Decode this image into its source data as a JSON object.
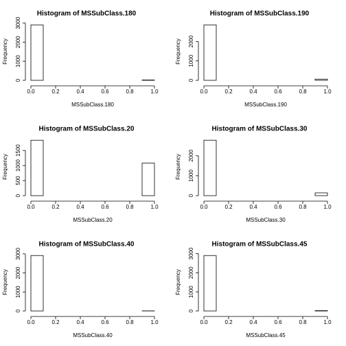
{
  "chart_data": [
    {
      "type": "histogram",
      "title": "Histogram of  MSSubClass.180",
      "x_label": "MSSubClass.180",
      "y_label": "Frequency",
      "bins": [
        0,
        0.1,
        0.2,
        0.3,
        0.4,
        0.5,
        0.6,
        0.7,
        0.8,
        0.9,
        1
      ],
      "values": [
        2902,
        0,
        0,
        0,
        0,
        0,
        0,
        0,
        0,
        17
      ],
      "xlim": [
        0,
        1
      ],
      "xticks": [
        {
          "value": 0,
          "label": "0.0"
        },
        0.2,
        0.4,
        0.6,
        0.8,
        {
          "value": 1,
          "label": "1.0"
        }
      ],
      "ylim": [
        0,
        3018
      ],
      "yticks": [
        0,
        1000,
        2000,
        3000
      ]
    },
    {
      "type": "histogram",
      "title": "Histogram of  MSSubClass.190",
      "x_label": "MSSubClass.190",
      "y_label": "Frequency",
      "bins": [
        0,
        0.1,
        0.2,
        0.3,
        0.4,
        0.5,
        0.6,
        0.7,
        0.8,
        0.9,
        1
      ],
      "values": [
        2858,
        0,
        0,
        0,
        0,
        0,
        0,
        0,
        0,
        61
      ],
      "xlim": [
        0,
        1
      ],
      "xticks": [
        {
          "value": 0,
          "label": "0.0"
        },
        0.2,
        0.4,
        0.6,
        0.8,
        {
          "value": 1,
          "label": "1.0"
        }
      ],
      "ylim": [
        0,
        2972
      ],
      "yticks": [
        0,
        1000,
        2000
      ]
    },
    {
      "type": "histogram",
      "title": "Histogram of  MSSubClass.20",
      "x_label": "MSSubClass.20",
      "y_label": "Frequency",
      "bins": [
        0,
        0.1,
        0.2,
        0.3,
        0.4,
        0.5,
        0.6,
        0.7,
        0.8,
        0.9,
        1
      ],
      "values": [
        1840,
        0,
        0,
        0,
        0,
        0,
        0,
        0,
        0,
        1079
      ],
      "xlim": [
        0,
        1
      ],
      "xticks": [
        {
          "value": 0,
          "label": "0.0"
        },
        0.2,
        0.4,
        0.6,
        0.8,
        {
          "value": 1,
          "label": "1.0"
        }
      ],
      "ylim": [
        0,
        1914
      ],
      "yticks": [
        0,
        500,
        1000,
        1500
      ]
    },
    {
      "type": "histogram",
      "title": "Histogram of  MSSubClass.30",
      "x_label": "MSSubClass.30",
      "y_label": "Frequency",
      "bins": [
        0,
        0.1,
        0.2,
        0.3,
        0.4,
        0.5,
        0.6,
        0.7,
        0.8,
        0.9,
        1
      ],
      "values": [
        2780,
        0,
        0,
        0,
        0,
        0,
        0,
        0,
        0,
        139
      ],
      "xlim": [
        0,
        1
      ],
      "xticks": [
        {
          "value": 0,
          "label": "0.0"
        },
        0.2,
        0.4,
        0.6,
        0.8,
        {
          "value": 1,
          "label": "1.0"
        }
      ],
      "ylim": [
        0,
        2891
      ],
      "yticks": [
        0,
        1000,
        2000
      ]
    },
    {
      "type": "histogram",
      "title": "Histogram of  MSSubClass.40",
      "x_label": "MSSubClass.40",
      "y_label": "Frequency",
      "bins": [
        0,
        0.1,
        0.2,
        0.3,
        0.4,
        0.5,
        0.6,
        0.7,
        0.8,
        0.9,
        1
      ],
      "values": [
        2913,
        0,
        0,
        0,
        0,
        0,
        0,
        0,
        0,
        6
      ],
      "xlim": [
        0,
        1
      ],
      "xticks": [
        {
          "value": 0,
          "label": "0.0"
        },
        0.2,
        0.4,
        0.6,
        0.8,
        {
          "value": 1,
          "label": "1.0"
        }
      ],
      "ylim": [
        0,
        3030
      ],
      "yticks": [
        0,
        1000,
        2000,
        3000
      ]
    },
    {
      "type": "histogram",
      "title": "Histogram of  MSSubClass.45",
      "x_label": "MSSubClass.45",
      "y_label": "Frequency",
      "bins": [
        0,
        0.1,
        0.2,
        0.3,
        0.4,
        0.5,
        0.6,
        0.7,
        0.8,
        0.9,
        1
      ],
      "values": [
        2901,
        0,
        0,
        0,
        0,
        0,
        0,
        0,
        0,
        18
      ],
      "xlim": [
        0,
        1
      ],
      "xticks": [
        {
          "value": 0,
          "label": "0.0"
        },
        0.2,
        0.4,
        0.6,
        0.8,
        {
          "value": 1,
          "label": "1.0"
        }
      ],
      "ylim": [
        0,
        3017
      ],
      "yticks": [
        0,
        1000,
        2000,
        3000
      ]
    }
  ]
}
